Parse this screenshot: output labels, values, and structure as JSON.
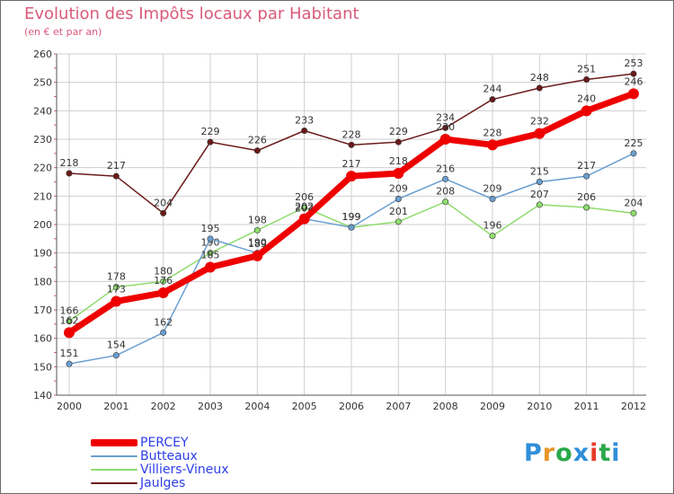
{
  "header": {
    "title": "Evolution des Impôts locaux par Habitant",
    "subtitle": "(en € et par an)"
  },
  "chart_data": {
    "type": "line",
    "title": "Evolution des Impôts locaux par Habitant",
    "subtitle": "(en € et par an)",
    "xlabel": "",
    "ylabel": "",
    "ylim": [
      140,
      260
    ],
    "y_ticks": [
      140,
      150,
      160,
      170,
      180,
      190,
      200,
      210,
      220,
      230,
      240,
      250,
      260
    ],
    "grid": true,
    "legend_position": "bottom-left",
    "categories": [
      "2000",
      "2001",
      "2002",
      "2003",
      "2004",
      "2005",
      "2006",
      "2007",
      "2008",
      "2009",
      "2010",
      "2011",
      "2012"
    ],
    "series": [
      {
        "name": "Jaulges",
        "color": "#6b1a1a",
        "values": [
          218,
          217,
          204,
          229,
          226,
          233,
          228,
          229,
          234,
          244,
          248,
          251,
          253
        ]
      },
      {
        "name": "Villiers-Vineux",
        "color": "#8fdc6e",
        "values": [
          166,
          178,
          180,
          190,
          198,
          206,
          199,
          201,
          208,
          196,
          207,
          206,
          204
        ]
      },
      {
        "name": "Butteaux",
        "color": "#6a9fd0",
        "values": [
          151,
          154,
          162,
          195,
          190,
          202,
          199,
          209,
          216,
          209,
          215,
          217,
          225
        ]
      },
      {
        "name": "PERCEY",
        "color": "#ee0000",
        "values": [
          162,
          173,
          176,
          185,
          189,
          202,
          217,
          218,
          230,
          228,
          232,
          240,
          246
        ]
      }
    ]
  },
  "legend": {
    "items": [
      {
        "label": "PERCEY",
        "color": "#ee0000"
      },
      {
        "label": "Butteaux",
        "color": "#6a9fd0"
      },
      {
        "label": "Villiers-Vineux",
        "color": "#8fdc6e"
      },
      {
        "label": "Jaulges",
        "color": "#6b1a1a"
      }
    ]
  },
  "logo": {
    "letters": [
      "P",
      "r",
      "o",
      "x",
      "i",
      "t",
      "i"
    ],
    "colors": [
      "#2f8fd9",
      "#e8962a",
      "#2aa84a",
      "#2f8fd9",
      "#e83a2a",
      "#2aa84a",
      "#2f8fd9"
    ]
  }
}
